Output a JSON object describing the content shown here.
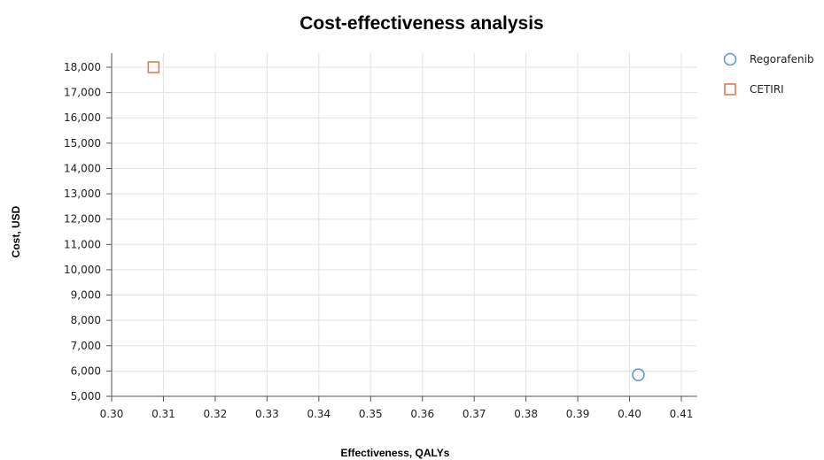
{
  "chart_data": {
    "type": "scatter",
    "title": "Cost-effectiveness  analysis",
    "xlabel": "Effectiveness, QALYs",
    "ylabel": "Cost, USD",
    "xlim": [
      0.3,
      0.41
    ],
    "ylim": [
      5000,
      18000
    ],
    "x_ticks": [
      "0.30",
      "0.31",
      "0.32",
      "0.33",
      "0.34",
      "0.35",
      "0.36",
      "0.37",
      "0.38",
      "0.39",
      "0.40",
      "0.41"
    ],
    "y_ticks": [
      "5,000",
      "6,000",
      "7,000",
      "8,000",
      "9,000",
      "10,000",
      "11,000",
      "12,000",
      "13,000",
      "14,000",
      "15,000",
      "16,000",
      "17,000",
      "18,000"
    ],
    "grid": true,
    "legend_position": "top-right",
    "series": [
      {
        "name": "Regorafenib",
        "marker": "circle",
        "color": "#5b9bd5",
        "points": [
          {
            "x": 0.4017,
            "y": 5850
          }
        ]
      },
      {
        "name": "CETIRI",
        "marker": "square",
        "color": "#e07b5a",
        "points": [
          {
            "x": 0.3081,
            "y": 18000
          }
        ]
      }
    ]
  }
}
